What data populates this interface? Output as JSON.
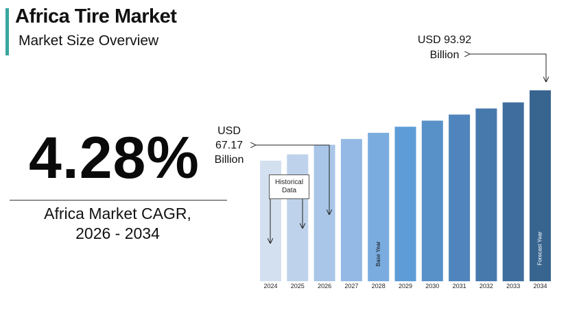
{
  "header": {
    "title": "Africa Tire Market",
    "subtitle": "Market Size Overview"
  },
  "cagr": {
    "value": "4.28%",
    "label_line1": "Africa Market CAGR,",
    "label_line2": "2026 - 2034"
  },
  "callouts": {
    "end_value": {
      "line1": "USD 93.92",
      "line2": "Billion"
    },
    "start_value": {
      "line1": "USD",
      "line2": "67.17",
      "line3": "Billion"
    },
    "historical": {
      "line1": "Historical",
      "line2": "Data"
    }
  },
  "chart_data": {
    "type": "bar",
    "categories": [
      "2024",
      "2025",
      "2026",
      "2027",
      "2028",
      "2029",
      "2030",
      "2031",
      "2032",
      "2033",
      "2034"
    ],
    "values": [
      59.3,
      62.4,
      67.17,
      70.0,
      73.0,
      76.0,
      79.0,
      82.0,
      85.0,
      88.0,
      93.92
    ],
    "ylim": [
      0,
      93.92
    ],
    "bar_labels": {
      "2028": "Base Year",
      "2034": "Forecast Year"
    },
    "colors": [
      "#d3e0ef",
      "#bfd2eb",
      "#a9c6e8",
      "#93b9e4",
      "#7aacdf",
      "#5e9cd8",
      "#5890c8",
      "#4f85bc",
      "#4779ad",
      "#3f6e9e",
      "#386590"
    ],
    "title": "",
    "xlabel": "",
    "ylabel": ""
  }
}
